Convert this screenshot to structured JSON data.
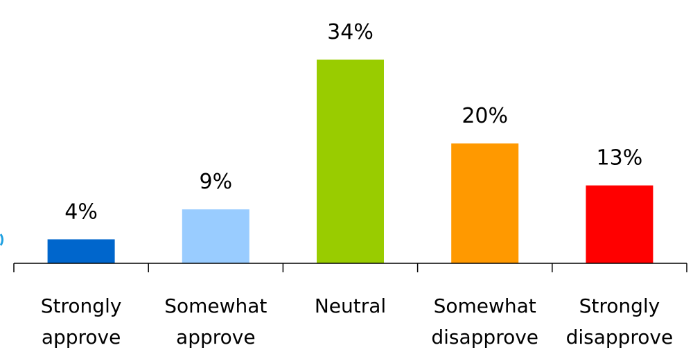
{
  "chart_data": {
    "type": "bar",
    "categories": [
      [
        "Strongly",
        "approve"
      ],
      [
        "Somewhat",
        "approve"
      ],
      [
        "Neutral"
      ],
      [
        "Somewhat",
        "disapprove"
      ],
      [
        "Strongly",
        "disapprove"
      ]
    ],
    "values": [
      4,
      9,
      34,
      20,
      13
    ],
    "value_labels": [
      "4%",
      "9%",
      "34%",
      "20%",
      "13%"
    ],
    "colors": [
      "#0066cc",
      "#99ccff",
      "#99cc00",
      "#ff9900",
      "#ff0000"
    ],
    "ylim": [
      0,
      34
    ],
    "grid": false,
    "legend": "none"
  }
}
